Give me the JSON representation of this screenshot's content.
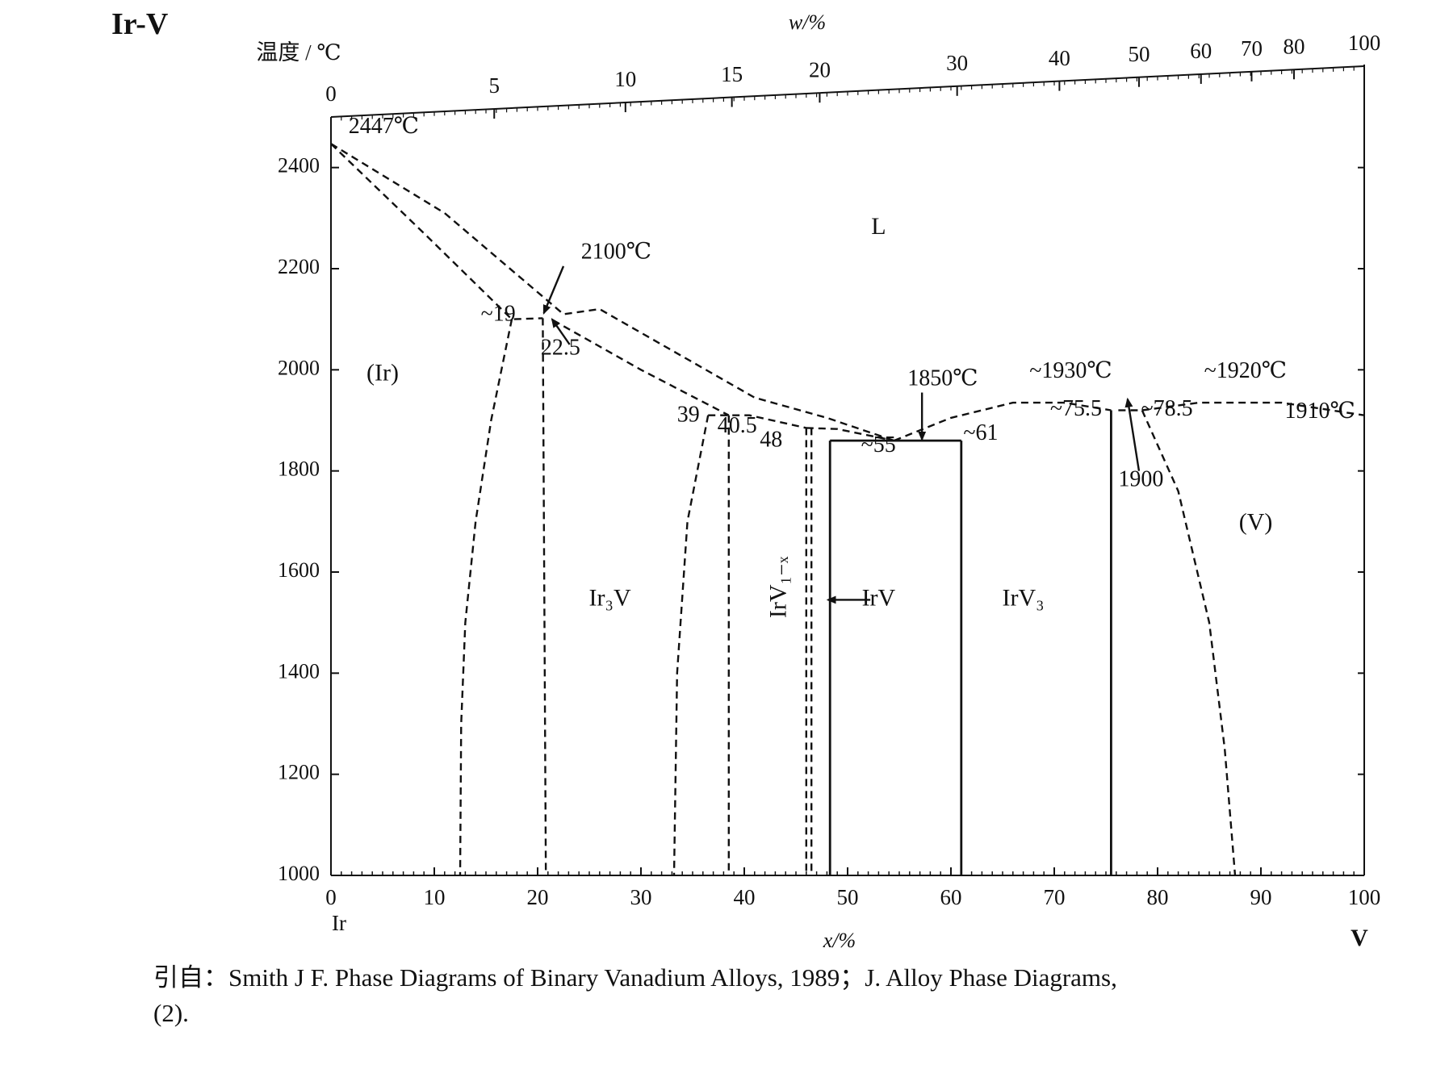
{
  "figure": {
    "title": "Ir-V",
    "caption_line1": "引自：Smith J F. Phase Diagrams of Binary Vanadium Alloys, 1989；J. Alloy Phase Diagrams,",
    "caption_line2": "(2)."
  },
  "chart_data": {
    "type": "phase_diagram",
    "title": "Ir-V",
    "ylabel": "温度 / ℃",
    "xlabel_bottom": "x/%",
    "xlabel_top": "w/%",
    "xlim": [
      0,
      100
    ],
    "ylim": [
      1000,
      2500
    ],
    "y_ticks": [
      1000,
      1200,
      1400,
      1600,
      1800,
      2000,
      2200,
      2400
    ],
    "x_ticks_bottom": [
      0,
      10,
      20,
      30,
      40,
      50,
      60,
      70,
      80,
      90,
      100
    ],
    "x_ticks_top_wt": [
      0,
      5,
      10,
      15,
      20,
      30,
      40,
      50,
      60,
      70,
      80,
      100
    ],
    "x_ticks_top_at": [
      0,
      15.8,
      28.5,
      38.8,
      47.3,
      60.6,
      70.5,
      78.2,
      84.2,
      89.1,
      93.2,
      100
    ],
    "element_left": "Ir",
    "element_right": "V",
    "phase_labels": [
      {
        "text": "L",
        "x": 53,
        "y": 2280
      },
      {
        "text": "(Ir)",
        "x": 5,
        "y": 1990
      },
      {
        "text": "Ir₃V",
        "x": 27,
        "y": 1545
      },
      {
        "text": "IrV₁₋ₓ",
        "x": 43.5,
        "y": 1570,
        "rotate": -90
      },
      {
        "text": "IrV",
        "x": 53,
        "y": 1545
      },
      {
        "text": "IrV₃",
        "x": 67,
        "y": 1545
      },
      {
        "text": "(V)",
        "x": 89.5,
        "y": 1695
      }
    ],
    "annotations": [
      {
        "text": "2447℃",
        "x": 1.7,
        "y": 2478
      },
      {
        "text": "2100℃",
        "x": 24.2,
        "y": 2230
      },
      {
        "text": "~19",
        "x": 14.5,
        "y": 2107
      },
      {
        "text": "22.5",
        "x": 20.3,
        "y": 2040
      },
      {
        "text": "39",
        "x": 33.5,
        "y": 1908
      },
      {
        "text": "40.5",
        "x": 37.4,
        "y": 1886
      },
      {
        "text": "48",
        "x": 41.5,
        "y": 1858
      },
      {
        "text": "~55",
        "x": 51.3,
        "y": 1848
      },
      {
        "text": "1850℃",
        "x": 55.8,
        "y": 1980
      },
      {
        "text": "~61",
        "x": 61.2,
        "y": 1872
      },
      {
        "text": "~1930℃",
        "x": 67.6,
        "y": 1995
      },
      {
        "text": "~75.5",
        "x": 69.6,
        "y": 1920
      },
      {
        "text": "~78.5",
        "x": 78.4,
        "y": 1920
      },
      {
        "text": "~1920℃",
        "x": 84.5,
        "y": 1995
      },
      {
        "text": "1910℃",
        "x": 92.3,
        "y": 1915
      },
      {
        "text": "1900",
        "x": 76.2,
        "y": 1780
      }
    ],
    "arrows": [
      {
        "name": "arrow-2100",
        "from": [
          22.5,
          2205
        ],
        "to": [
          20.6,
          2112
        ]
      },
      {
        "name": "arrow-22-5",
        "from": [
          23.1,
          2050
        ],
        "to": [
          21.4,
          2100
        ]
      },
      {
        "name": "arrow-1850",
        "from": [
          57.2,
          1955
        ],
        "to": [
          57.2,
          1862
        ]
      },
      {
        "name": "arrow-1900",
        "from": [
          78.2,
          1800
        ],
        "to": [
          77.1,
          1942
        ]
      },
      {
        "name": "arrow-irv",
        "from": [
          52.2,
          1545
        ],
        "to": [
          48.1,
          1545
        ]
      }
    ],
    "dashed_lines": [
      {
        "name": "liquidus-ir-upper",
        "points": [
          [
            0,
            2447
          ],
          [
            11,
            2310
          ],
          [
            22.5,
            2110
          ],
          [
            26,
            2120
          ],
          [
            41,
            1945
          ],
          [
            48,
            1905
          ],
          [
            54.5,
            1860
          ]
        ]
      },
      {
        "name": "solidus-ir",
        "points": [
          [
            0,
            2447
          ],
          [
            9,
            2270
          ],
          [
            17.5,
            2100
          ],
          [
            20.5,
            2102
          ]
        ]
      },
      {
        "name": "solvus-ir",
        "points": [
          [
            17.5,
            2100
          ],
          [
            15.5,
            1900
          ],
          [
            14,
            1700
          ],
          [
            13,
            1500
          ],
          [
            12.6,
            1300
          ],
          [
            12.5,
            1000
          ]
        ]
      },
      {
        "name": "ir3v-left",
        "points": [
          [
            20.5,
            2102
          ],
          [
            20.8,
            1000
          ]
        ]
      },
      {
        "name": "liquidus-ir3v-low",
        "points": [
          [
            21.5,
            2098
          ],
          [
            30,
            2000
          ],
          [
            38.5,
            1910
          ]
        ]
      },
      {
        "name": "ir3v-peak-flat",
        "points": [
          [
            36.5,
            1910
          ],
          [
            40.5,
            1910
          ],
          [
            46,
            1885
          ]
        ]
      },
      {
        "name": "ir3v-right",
        "points": [
          [
            36.5,
            1910
          ],
          [
            34.5,
            1700
          ],
          [
            33.5,
            1400
          ],
          [
            33.2,
            1000
          ]
        ]
      },
      {
        "name": "irv1x-left",
        "points": [
          [
            38.5,
            1910
          ],
          [
            38.5,
            1000
          ]
        ]
      },
      {
        "name": "irv1x-right",
        "points": [
          [
            46,
            1885
          ],
          [
            46,
            1000
          ]
        ]
      },
      {
        "name": "irv1x-right2",
        "points": [
          [
            46.5,
            1885
          ],
          [
            46.5,
            1000
          ]
        ]
      },
      {
        "name": "irv1x-top",
        "points": [
          [
            46,
            1885
          ],
          [
            49,
            1883
          ],
          [
            54.5,
            1860
          ]
        ]
      },
      {
        "name": "liquidus-irv-irv3",
        "points": [
          [
            54.5,
            1860
          ],
          [
            60,
            1905
          ],
          [
            66,
            1935
          ],
          [
            71,
            1935
          ],
          [
            75.5,
            1920
          ]
        ]
      },
      {
        "name": "liquidus-v",
        "points": [
          [
            78.5,
            1920
          ],
          [
            84,
            1935
          ],
          [
            92,
            1935
          ],
          [
            100,
            1910
          ]
        ]
      },
      {
        "name": "solidus-v",
        "points": [
          [
            78.5,
            1920
          ],
          [
            82,
            1760
          ],
          [
            85,
            1500
          ],
          [
            86.5,
            1250
          ],
          [
            87.5,
            1000
          ]
        ]
      },
      {
        "name": "irv3-top-right",
        "points": [
          [
            76.2,
            1920
          ],
          [
            78.5,
            1920
          ]
        ]
      }
    ],
    "solid_lines": [
      {
        "name": "irv-left",
        "points": [
          [
            48.3,
            1000
          ],
          [
            48.3,
            1860
          ]
        ]
      },
      {
        "name": "irv-top",
        "points": [
          [
            48.3,
            1860
          ],
          [
            61,
            1860
          ]
        ]
      },
      {
        "name": "irv-right",
        "points": [
          [
            61,
            1860
          ],
          [
            61,
            1000
          ]
        ]
      },
      {
        "name": "irv3-left",
        "points": [
          [
            75.5,
            1000
          ],
          [
            75.5,
            1920
          ]
        ]
      }
    ]
  }
}
